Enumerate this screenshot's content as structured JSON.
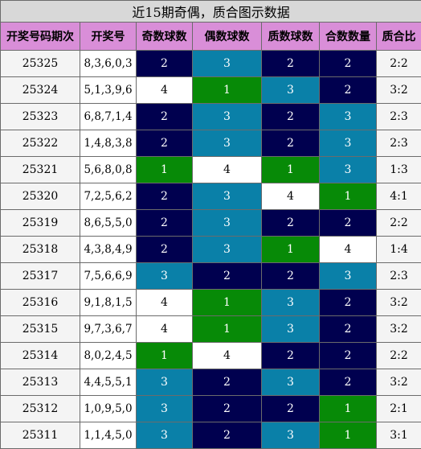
{
  "title": "近15期奇偶，质合图示数据",
  "headers": [
    "开奖号码期次",
    "开奖号",
    "奇数球数",
    "偶数球数",
    "质数球数",
    "合数数量",
    "质合比"
  ],
  "colors": {
    "navy": "#00004f",
    "teal": "#0a80a8",
    "green": "#078a07",
    "white": "#ffffff"
  },
  "rows": [
    {
      "issue": "25325",
      "numbers": "8,3,6,0,3",
      "odd": "2",
      "odd_color": "navy",
      "even": "3",
      "even_color": "teal",
      "prime": "2",
      "prime_color": "navy",
      "composite": "2",
      "composite_color": "navy",
      "ratio": "2:2"
    },
    {
      "issue": "25324",
      "numbers": "5,1,3,9,6",
      "odd": "4",
      "odd_color": "white",
      "even": "1",
      "even_color": "green",
      "prime": "3",
      "prime_color": "teal",
      "composite": "2",
      "composite_color": "navy",
      "ratio": "3:2"
    },
    {
      "issue": "25323",
      "numbers": "6,8,7,1,4",
      "odd": "2",
      "odd_color": "navy",
      "even": "3",
      "even_color": "teal",
      "prime": "2",
      "prime_color": "navy",
      "composite": "3",
      "composite_color": "teal",
      "ratio": "2:3"
    },
    {
      "issue": "25322",
      "numbers": "1,4,8,3,8",
      "odd": "2",
      "odd_color": "navy",
      "even": "3",
      "even_color": "teal",
      "prime": "2",
      "prime_color": "navy",
      "composite": "3",
      "composite_color": "teal",
      "ratio": "2:3"
    },
    {
      "issue": "25321",
      "numbers": "5,6,8,0,8",
      "odd": "1",
      "odd_color": "green",
      "even": "4",
      "even_color": "white",
      "prime": "1",
      "prime_color": "green",
      "composite": "3",
      "composite_color": "teal",
      "ratio": "1:3"
    },
    {
      "issue": "25320",
      "numbers": "7,2,5,6,2",
      "odd": "2",
      "odd_color": "navy",
      "even": "3",
      "even_color": "teal",
      "prime": "4",
      "prime_color": "white",
      "composite": "1",
      "composite_color": "green",
      "ratio": "4:1"
    },
    {
      "issue": "25319",
      "numbers": "8,6,5,5,0",
      "odd": "2",
      "odd_color": "navy",
      "even": "3",
      "even_color": "teal",
      "prime": "2",
      "prime_color": "navy",
      "composite": "2",
      "composite_color": "navy",
      "ratio": "2:2"
    },
    {
      "issue": "25318",
      "numbers": "4,3,8,4,9",
      "odd": "2",
      "odd_color": "navy",
      "even": "3",
      "even_color": "teal",
      "prime": "1",
      "prime_color": "green",
      "composite": "4",
      "composite_color": "white",
      "ratio": "1:4"
    },
    {
      "issue": "25317",
      "numbers": "7,5,6,6,9",
      "odd": "3",
      "odd_color": "teal",
      "even": "2",
      "even_color": "navy",
      "prime": "2",
      "prime_color": "navy",
      "composite": "3",
      "composite_color": "teal",
      "ratio": "2:3"
    },
    {
      "issue": "25316",
      "numbers": "9,1,8,1,5",
      "odd": "4",
      "odd_color": "white",
      "even": "1",
      "even_color": "green",
      "prime": "3",
      "prime_color": "teal",
      "composite": "2",
      "composite_color": "navy",
      "ratio": "3:2"
    },
    {
      "issue": "25315",
      "numbers": "9,7,3,6,7",
      "odd": "4",
      "odd_color": "white",
      "even": "1",
      "even_color": "green",
      "prime": "3",
      "prime_color": "teal",
      "composite": "2",
      "composite_color": "navy",
      "ratio": "3:2"
    },
    {
      "issue": "25314",
      "numbers": "8,0,2,4,5",
      "odd": "1",
      "odd_color": "green",
      "even": "4",
      "even_color": "white",
      "prime": "2",
      "prime_color": "navy",
      "composite": "2",
      "composite_color": "navy",
      "ratio": "2:2"
    },
    {
      "issue": "25313",
      "numbers": "4,4,5,5,1",
      "odd": "3",
      "odd_color": "teal",
      "even": "2",
      "even_color": "navy",
      "prime": "3",
      "prime_color": "teal",
      "composite": "2",
      "composite_color": "navy",
      "ratio": "3:2"
    },
    {
      "issue": "25312",
      "numbers": "1,0,9,5,0",
      "odd": "3",
      "odd_color": "teal",
      "even": "2",
      "even_color": "navy",
      "prime": "2",
      "prime_color": "navy",
      "composite": "1",
      "composite_color": "green",
      "ratio": "2:1"
    },
    {
      "issue": "25311",
      "numbers": "1,1,4,5,0",
      "odd": "3",
      "odd_color": "teal",
      "even": "2",
      "even_color": "navy",
      "prime": "3",
      "prime_color": "teal",
      "composite": "1",
      "composite_color": "green",
      "ratio": "3:1"
    }
  ]
}
